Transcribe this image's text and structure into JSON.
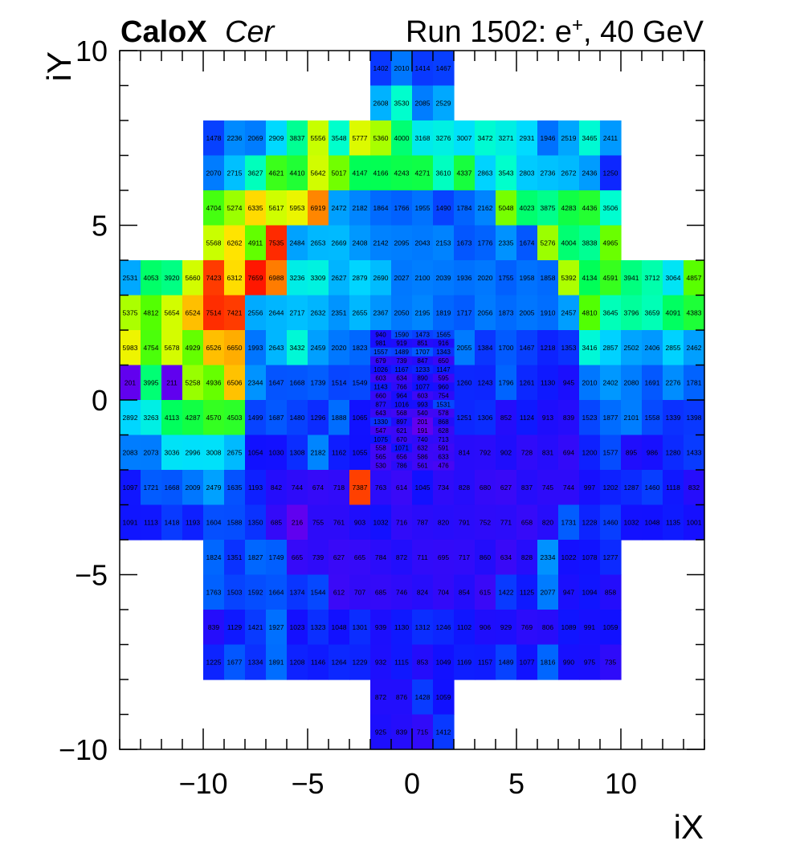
{
  "header": {
    "brand": "CaloX",
    "channel": "Cer",
    "run_prefix": "Run 1502: e",
    "run_sup": "+",
    "run_suffix": ", 40 GeV"
  },
  "chart_data": {
    "type": "heatmap",
    "xlabel": "iX",
    "ylabel": "iY",
    "xlim": [
      -14,
      14
    ],
    "ylim": [
      -10,
      10
    ],
    "x_ticks": [
      -10,
      -5,
      0,
      5,
      10
    ],
    "y_ticks": [
      -10,
      -5,
      0,
      5,
      10
    ],
    "x_tick_labels": [
      "−10",
      "−5",
      "0",
      "5",
      "10"
    ],
    "y_tick_labels": [
      "−10",
      "−5",
      "0",
      "5",
      "10"
    ],
    "rows": [
      {
        "iy": 9,
        "x_start": -2,
        "values": [
          1402,
          2010,
          1414,
          1467
        ]
      },
      {
        "iy": 8,
        "x_start": -2,
        "values": [
          2608,
          3530,
          2085,
          2529
        ]
      },
      {
        "iy": 7,
        "x_start": -10,
        "values": [
          1478,
          2236,
          2069,
          2909,
          3837,
          5556,
          3548,
          5777,
          5360,
          4000,
          3168,
          3276,
          3007,
          3472,
          3271,
          2931,
          1946,
          2519,
          3465,
          2411
        ]
      },
      {
        "iy": 6,
        "x_start": -10,
        "values": [
          2070,
          2715,
          3627,
          4621,
          4410,
          5642,
          5017,
          4147,
          4166,
          4243,
          4271,
          3610,
          4337,
          2863,
          3543,
          2803,
          2736,
          2672,
          2436,
          1250
        ]
      },
      {
        "iy": 5,
        "x_start": -10,
        "values": [
          4704,
          5274,
          6335,
          5617,
          5953,
          6919,
          2472,
          2182,
          1864,
          1766,
          1955,
          1490,
          1784,
          2162,
          5048,
          4023,
          3875,
          4283,
          4436,
          3506
        ]
      },
      {
        "iy": 4,
        "x_start": -10,
        "values": [
          5568,
          6262,
          4911,
          7535,
          2484,
          2653,
          2669,
          2408,
          2142,
          2095,
          2043,
          2153,
          1673,
          1776,
          2335,
          1674,
          5276,
          4004,
          3838,
          4965
        ]
      },
      {
        "iy": 3,
        "x_start": -14,
        "values": [
          2531,
          4053,
          3920,
          5660,
          7423,
          6312,
          7659,
          6988,
          3236,
          3309,
          2627,
          2879,
          2690,
          2027,
          2100,
          2039,
          1936,
          2020,
          1755,
          1958,
          1858,
          5392,
          4134,
          4591,
          3941,
          3712,
          3064,
          4857
        ]
      },
      {
        "iy": 2,
        "x_start": -14,
        "values": [
          5375,
          4812,
          5654,
          6524,
          7514,
          7421,
          2556,
          2644,
          2717,
          2632,
          2351,
          2655,
          2367,
          2050,
          2195,
          1819,
          1717,
          2056,
          1873,
          2005,
          1910,
          2457,
          4810,
          3645,
          3796,
          3659,
          4091,
          4383
        ]
      },
      {
        "iy": 1,
        "x_start": -14,
        "values": [
          5983,
          4754,
          5678,
          4929,
          6526,
          6650,
          1993,
          2643,
          3432,
          2459,
          2020,
          1823,
          null,
          null,
          null,
          null,
          2055,
          1384,
          1700,
          1467,
          1218,
          1353,
          3416,
          2857,
          2502,
          2406,
          2855,
          2462
        ]
      },
      {
        "iy": 0,
        "x_start": -14,
        "values": [
          201,
          3995,
          211,
          5258,
          4936,
          6506,
          2344,
          1647,
          1668,
          1739,
          1514,
          1549,
          null,
          null,
          null,
          null,
          1260,
          1243,
          1796,
          1261,
          1130,
          945,
          2010,
          2402,
          2080,
          1691,
          2276,
          1781
        ]
      },
      {
        "iy": -1,
        "x_start": -14,
        "values": [
          2892,
          3263,
          4113,
          4287,
          4570,
          4503,
          1499,
          1687,
          1480,
          1296,
          1888,
          1065,
          null,
          null,
          null,
          null,
          1251,
          1306,
          852,
          1124,
          913,
          839,
          1523,
          1877,
          2101,
          1558,
          1339,
          1398
        ]
      },
      {
        "iy": -2,
        "x_start": -14,
        "values": [
          2083,
          2073,
          3036,
          2996,
          3008,
          2675,
          1054,
          1030,
          1308,
          2182,
          1162,
          1055,
          null,
          null,
          null,
          null,
          814,
          792,
          902,
          728,
          831,
          694,
          1200,
          1577,
          895,
          986,
          1280,
          1433
        ]
      },
      {
        "iy": -3,
        "x_start": -14,
        "values": [
          1097,
          1721,
          1668,
          2009,
          2479,
          1635,
          1193,
          842,
          744,
          674,
          718,
          7387,
          763,
          614,
          1045,
          734,
          828,
          680,
          627,
          837,
          745,
          744,
          997,
          1202,
          1287,
          1460,
          1118,
          832
        ]
      },
      {
        "iy": -4,
        "x_start": -14,
        "values": [
          1091,
          1113,
          1418,
          1193,
          1604,
          1588,
          1350,
          685,
          216,
          755,
          761,
          903,
          1032,
          716,
          787,
          820,
          791,
          752,
          771,
          658,
          820,
          1731,
          1228,
          1460,
          1032,
          1048,
          1135,
          1001
        ]
      },
      {
        "iy": -5,
        "x_start": -10,
        "values": [
          1824,
          1351,
          1827,
          1749,
          665,
          739,
          627,
          665,
          784,
          872,
          711,
          695,
          717,
          860,
          634,
          828,
          2334,
          1022,
          1078,
          1277
        ]
      },
      {
        "iy": -6,
        "x_start": -10,
        "values": [
          1763,
          1503,
          1592,
          1664,
          1374,
          1544,
          612,
          707,
          685,
          746,
          824,
          704,
          854,
          615,
          1422,
          1125,
          2077,
          947,
          1094,
          858
        ]
      },
      {
        "iy": -7,
        "x_start": -10,
        "values": [
          839,
          1129,
          1421,
          1927,
          1023,
          1323,
          1048,
          1301,
          939,
          1130,
          1312,
          1246,
          1102,
          906,
          929,
          769,
          806,
          1089,
          991,
          1059
        ]
      },
      {
        "iy": -8,
        "x_start": -10,
        "values": [
          1225,
          1677,
          1334,
          1891,
          1208,
          1146,
          1264,
          1229,
          932,
          1115,
          853,
          1049,
          1169,
          1157,
          1489,
          1077,
          1816,
          990,
          975,
          735
        ]
      },
      {
        "iy": -9,
        "x_start": -2,
        "values": [
          872,
          876,
          1428,
          1059
        ]
      },
      {
        "iy": -10,
        "x_start": -2,
        "values": [
          925,
          839,
          715,
          1412
        ]
      }
    ],
    "fine_grid": {
      "x_start": -2,
      "x_step": 1,
      "subdiv": 4,
      "rows": [
        {
          "iy": 1,
          "values": [
            [
              940,
              1590,
              1473,
              1565
            ],
            [
              981,
              919,
              851,
              916
            ],
            [
              1557,
              1489,
              1707,
              1343
            ],
            [
              679,
              739,
              847,
              650
            ]
          ]
        },
        {
          "iy": 0,
          "values": [
            [
              1026,
              1167,
              1233,
              1147
            ],
            [
              603,
              634,
              890,
              595
            ],
            [
              1143,
              766,
              1077,
              960
            ],
            [
              660,
              964,
              603,
              754
            ]
          ]
        },
        {
          "iy": -1,
          "values": [
            [
              877,
              1016,
              993,
              1531
            ],
            [
              643,
              568,
              540,
              578
            ],
            [
              1330,
              897,
              201,
              868
            ],
            [
              547,
              621,
              191,
              628
            ]
          ]
        },
        {
          "iy": -2,
          "values": [
            [
              1075,
              670,
              740,
              713
            ],
            [
              558,
              1071,
              632,
              591
            ],
            [
              565,
              656,
              586,
              633
            ],
            [
              530,
              786,
              561,
              476
            ]
          ]
        }
      ]
    },
    "color_scale": {
      "min": 150,
      "max": 7700,
      "palette": "rainbow"
    }
  }
}
